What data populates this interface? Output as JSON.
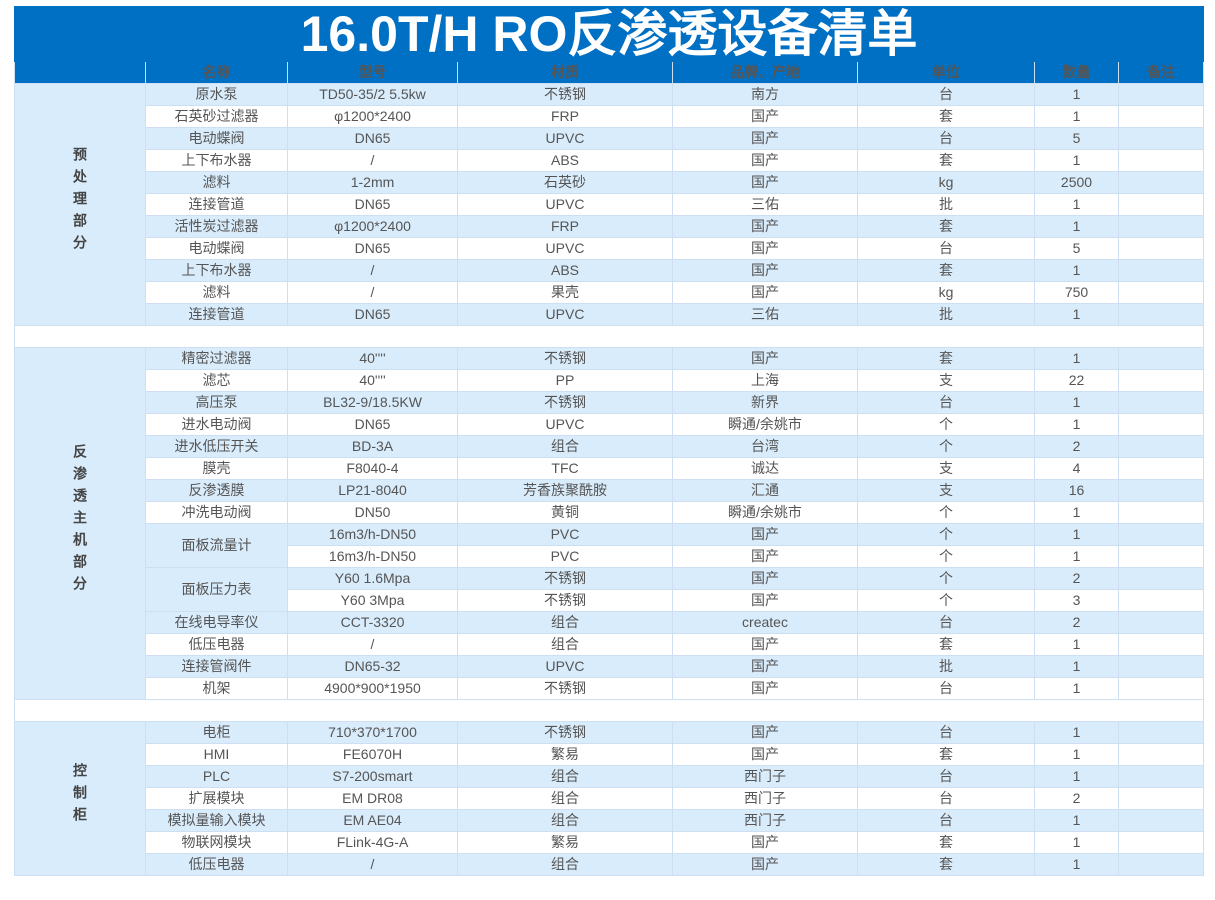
{
  "title": "16.0T/H RO反渗透设备清单",
  "colors": {
    "header_bg": "#0070c5",
    "row_alt": "#d9ecfb"
  },
  "columns": [
    "",
    "名称",
    "型号",
    "材质",
    "品牌、产地",
    "单位",
    "数量",
    "备注"
  ],
  "groups": [
    {
      "label": "预处理部分",
      "rows": [
        {
          "name": "原水泵",
          "model": "TD50-35/2  5.5kw",
          "material": "不锈钢",
          "brand": "南方",
          "unit": "台",
          "qty": "1",
          "note": ""
        },
        {
          "name": "石英砂过滤器",
          "model": "φ1200*2400",
          "material": "FRP",
          "brand": "国产",
          "unit": "套",
          "qty": "1",
          "note": ""
        },
        {
          "name": "电动蝶阀",
          "model": "DN65",
          "material": "UPVC",
          "brand": "国产",
          "unit": "台",
          "qty": "5",
          "note": ""
        },
        {
          "name": "上下布水器",
          "model": "/",
          "material": "ABS",
          "brand": "国产",
          "unit": "套",
          "qty": "1",
          "note": ""
        },
        {
          "name": "滤料",
          "model": "1-2mm",
          "material": "石英砂",
          "brand": "国产",
          "unit": "kg",
          "qty": "2500",
          "note": ""
        },
        {
          "name": "连接管道",
          "model": "DN65",
          "material": "UPVC",
          "brand": "三佑",
          "unit": "批",
          "qty": "1",
          "note": ""
        },
        {
          "name": "活性炭过滤器",
          "model": "φ1200*2400",
          "material": "FRP",
          "brand": "国产",
          "unit": "套",
          "qty": "1",
          "note": ""
        },
        {
          "name": "电动蝶阀",
          "model": "DN65",
          "material": "UPVC",
          "brand": "国产",
          "unit": "台",
          "qty": "5",
          "note": ""
        },
        {
          "name": "上下布水器",
          "model": "/",
          "material": "ABS",
          "brand": "国产",
          "unit": "套",
          "qty": "1",
          "note": ""
        },
        {
          "name": "滤料",
          "model": "/",
          "material": "果壳",
          "brand": "国产",
          "unit": "kg",
          "qty": "750",
          "note": ""
        },
        {
          "name": "连接管道",
          "model": "DN65",
          "material": "UPVC",
          "brand": "三佑",
          "unit": "批",
          "qty": "1",
          "note": ""
        }
      ]
    },
    {
      "label": "反渗透主机部分",
      "rows": [
        {
          "name": "精密过滤器",
          "model": "40''''",
          "material": "不锈钢",
          "brand": "国产",
          "unit": "套",
          "qty": "1",
          "note": ""
        },
        {
          "name": "滤芯",
          "model": "40''''",
          "material": "PP",
          "brand": "上海",
          "unit": "支",
          "qty": "22",
          "note": ""
        },
        {
          "name": "高压泵",
          "model": "BL32-9/18.5KW",
          "material": "不锈钢",
          "brand": "新界",
          "unit": "台",
          "qty": "1",
          "note": ""
        },
        {
          "name": "进水电动阀",
          "model": "DN65",
          "material": "UPVC",
          "brand": "瞬通/余姚市",
          "unit": "个",
          "qty": "1",
          "note": ""
        },
        {
          "name": "进水低压开关",
          "model": "BD-3A",
          "material": "组合",
          "brand": "台湾",
          "unit": "个",
          "qty": "2",
          "note": ""
        },
        {
          "name": "膜壳",
          "model": "F8040-4",
          "material": "TFC",
          "brand": "诚达",
          "unit": "支",
          "qty": "4",
          "note": ""
        },
        {
          "name": "反渗透膜",
          "model": "LP21-8040",
          "material": "芳香族聚酰胺",
          "brand": "汇通",
          "unit": "支",
          "qty": "16",
          "note": ""
        },
        {
          "name": "冲洗电动阀",
          "model": "DN50",
          "material": "黄铜",
          "brand": "瞬通/余姚市",
          "unit": "个",
          "qty": "1",
          "note": ""
        },
        {
          "name": "面板流量计",
          "span": 2,
          "model": "16m3/h-DN50",
          "material": "PVC",
          "brand": "国产",
          "unit": "个",
          "qty": "1",
          "note": ""
        },
        {
          "model": "16m3/h-DN50",
          "material": "PVC",
          "brand": "国产",
          "unit": "个",
          "qty": "1",
          "note": ""
        },
        {
          "name": "面板压力表",
          "span": 2,
          "model": "Y60 1.6Mpa",
          "material": "不锈钢",
          "brand": "国产",
          "unit": "个",
          "qty": "2",
          "note": ""
        },
        {
          "model": "Y60 3Mpa",
          "material": "不锈钢",
          "brand": "国产",
          "unit": "个",
          "qty": "3",
          "note": ""
        },
        {
          "name": "在线电导率仪",
          "model": "CCT-3320",
          "material": "组合",
          "brand": "createc",
          "unit": "台",
          "qty": "2",
          "note": ""
        },
        {
          "name": "低压电器",
          "model": "/",
          "material": "组合",
          "brand": "国产",
          "unit": "套",
          "qty": "1",
          "note": ""
        },
        {
          "name": "连接管阀件",
          "model": "DN65-32",
          "material": "UPVC",
          "brand": "国产",
          "unit": "批",
          "qty": "1",
          "note": ""
        },
        {
          "name": "机架",
          "model": "4900*900*1950",
          "material": "不锈钢",
          "brand": "国产",
          "unit": "台",
          "qty": "1",
          "note": ""
        }
      ]
    },
    {
      "label": "控制柜",
      "rows": [
        {
          "name": "电柜",
          "model": "710*370*1700",
          "material": "不锈钢",
          "brand": "国产",
          "unit": "台",
          "qty": "1",
          "note": ""
        },
        {
          "name": "HMI",
          "model": "FE6070H",
          "material": "繁易",
          "brand": "国产",
          "unit": "套",
          "qty": "1",
          "note": ""
        },
        {
          "name": "PLC",
          "model": "S7-200smart",
          "material": "组合",
          "brand": "西门子",
          "unit": "台",
          "qty": "1",
          "note": ""
        },
        {
          "name": "扩展模块",
          "model": "EM DR08",
          "material": "组合",
          "brand": "西门子",
          "unit": "台",
          "qty": "2",
          "note": ""
        },
        {
          "name": "模拟量输入模块",
          "model": "EM AE04",
          "material": "组合",
          "brand": "西门子",
          "unit": "台",
          "qty": "1",
          "note": ""
        },
        {
          "name": "物联网模块",
          "model": "FLink-4G-A",
          "material": "繁易",
          "brand": "国产",
          "unit": "套",
          "qty": "1",
          "note": ""
        },
        {
          "name": "低压电器",
          "model": "/",
          "material": "组合",
          "brand": "国产",
          "unit": "套",
          "qty": "1",
          "note": ""
        }
      ]
    }
  ]
}
